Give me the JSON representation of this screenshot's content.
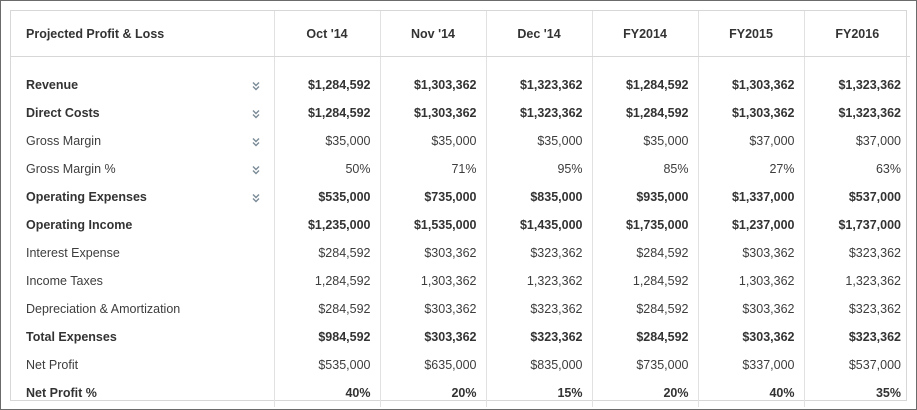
{
  "table": {
    "title": "Projected Profit & Loss",
    "columns": [
      "Oct '14",
      "Nov '14",
      "Dec '14",
      "FY2014",
      "FY2015",
      "FY2016"
    ],
    "rows": [
      {
        "label": "Revenue",
        "bold": true,
        "expandable": true,
        "values": [
          "$1,284,592",
          "$1,303,362",
          "$1,323,362",
          "$1,284,592",
          "$1,303,362",
          "$1,323,362"
        ]
      },
      {
        "label": "Direct Costs",
        "bold": true,
        "expandable": true,
        "values": [
          "$1,284,592",
          "$1,303,362",
          "$1,323,362",
          "$1,284,592",
          "$1,303,362",
          "$1,323,362"
        ]
      },
      {
        "label": "Gross Margin",
        "bold": false,
        "expandable": true,
        "values": [
          "$35,000",
          "$35,000",
          "$35,000",
          "$35,000",
          "$37,000",
          "$37,000"
        ]
      },
      {
        "label": "Gross Margin %",
        "bold": false,
        "expandable": true,
        "values": [
          "50%",
          "71%",
          "95%",
          "85%",
          "27%",
          "63%"
        ]
      },
      {
        "label": "Operating Expenses",
        "bold": true,
        "expandable": true,
        "values": [
          "$535,000",
          "$735,000",
          "$835,000",
          "$935,000",
          "$1,337,000",
          "$537,000"
        ]
      },
      {
        "label": "Operating Income",
        "bold": true,
        "expandable": false,
        "values": [
          "$1,235,000",
          "$1,535,000",
          "$1,435,000",
          "$1,735,000",
          "$1,237,000",
          "$1,737,000"
        ]
      },
      {
        "label": "Interest Expense",
        "bold": false,
        "expandable": false,
        "values": [
          "$284,592",
          "$303,362",
          "$323,362",
          "$284,592",
          "$303,362",
          "$323,362"
        ]
      },
      {
        "label": "Income Taxes",
        "bold": false,
        "expandable": false,
        "values": [
          "1,284,592",
          "1,303,362",
          "1,323,362",
          "1,284,592",
          "1,303,362",
          "1,323,362"
        ]
      },
      {
        "label": "Depreciation & Amortization",
        "bold": false,
        "expandable": false,
        "values": [
          "$284,592",
          "$303,362",
          "$323,362",
          "$284,592",
          "$303,362",
          "$323,362"
        ]
      },
      {
        "label": "Total Expenses",
        "bold": true,
        "expandable": false,
        "values": [
          "$984,592",
          "$303,362",
          "$323,362",
          "$284,592",
          "$303,362",
          "$323,362"
        ]
      },
      {
        "label": "Net Profit",
        "bold": false,
        "expandable": false,
        "values": [
          "$535,000",
          "$635,000",
          "$835,000",
          "$735,000",
          "$337,000",
          "$537,000"
        ]
      },
      {
        "label": "Net Profit %",
        "bold": true,
        "expandable": false,
        "values": [
          "40%",
          "20%",
          "15%",
          "20%",
          "40%",
          "35%"
        ]
      }
    ]
  },
  "icons": {
    "expand": "double-chevron-down-icon"
  },
  "colors": {
    "chevron": "#7a8a96",
    "text": "#333333",
    "grid": "#e1e1e1"
  }
}
